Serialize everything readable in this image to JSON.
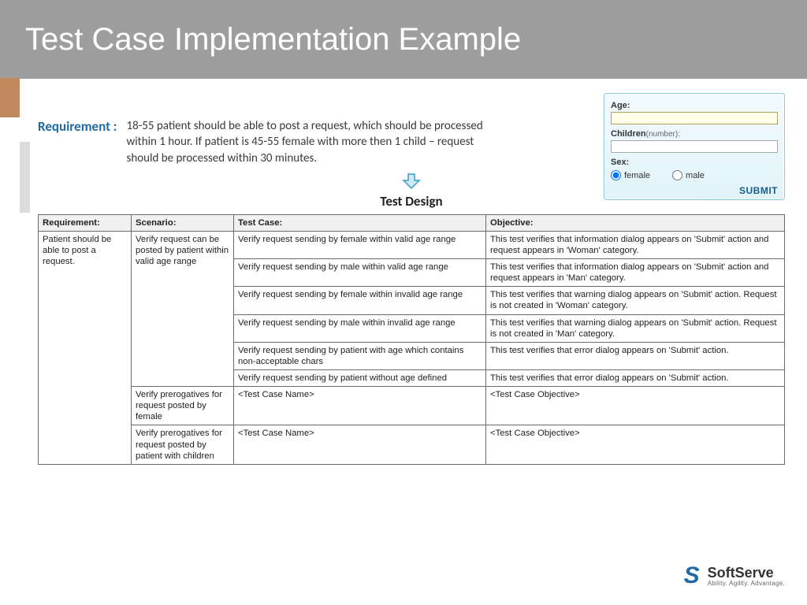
{
  "header": {
    "title": "Test Case Implementation Example"
  },
  "requirement": {
    "label": "Requirement :",
    "text": "18-55 patient should be able to post a request, which should be processed within 1 hour. If patient is 45-55 female with more then 1 child – request should be processed within 30 minutes."
  },
  "form": {
    "age_label": "Age:",
    "children_label": "Children",
    "children_hint": "(number):",
    "sex_label": "Sex:",
    "female_label": "female",
    "male_label": "male",
    "submit_label": "SUBMIT"
  },
  "section_title": "Test Design",
  "table": {
    "headers": [
      "Requirement:",
      "Scenario:",
      "Test Case:",
      "Objective:"
    ],
    "requirement_cell": "Patient should be able to post a request.",
    "scenarios": [
      {
        "scenario": "Verify request can be posted by patient within valid age range",
        "cases": [
          {
            "tc": "Verify request sending by female within valid age range",
            "obj": "This test verifies that information dialog appears on 'Submit' action and request appears in 'Woman' category."
          },
          {
            "tc": "Verify request sending by male within valid age range",
            "obj": "This test verifies that information dialog appears on 'Submit' action and request appears in 'Man' category."
          },
          {
            "tc": "Verify request sending by female within invalid age range",
            "obj": "This test verifies that warning dialog appears on 'Submit' action. Request is not created in 'Woman' category."
          },
          {
            "tc": "Verify request sending by male within invalid age range",
            "obj": "This test verifies that warning dialog appears on 'Submit' action. Request is not created in 'Man' category."
          },
          {
            "tc": "Verify request sending by patient with age which contains non-acceptable chars",
            "obj": "This test verifies that error dialog appears on 'Submit' action."
          },
          {
            "tc": "Verify request sending by patient without age defined",
            "obj": "This test verifies that error dialog appears on 'Submit' action."
          }
        ]
      },
      {
        "scenario": "Verify prerogatives for request posted by female",
        "cases": [
          {
            "tc": "<Test Case Name>",
            "obj": "<Test Case Objective>"
          }
        ]
      },
      {
        "scenario": "Verify prerogatives for request posted by patient with children",
        "cases": [
          {
            "tc": "<Test Case Name>",
            "obj": "<Test Case Objective>"
          }
        ]
      }
    ]
  },
  "logo": {
    "name": "SoftServe",
    "tagline": "Ability. Agility. Advantage."
  },
  "colors": {
    "header_bg": "#9e9e9e",
    "accent_blue": "#1f6aa5",
    "panel_border": "#8cc5dd",
    "table_border": "#6a6a6a"
  }
}
